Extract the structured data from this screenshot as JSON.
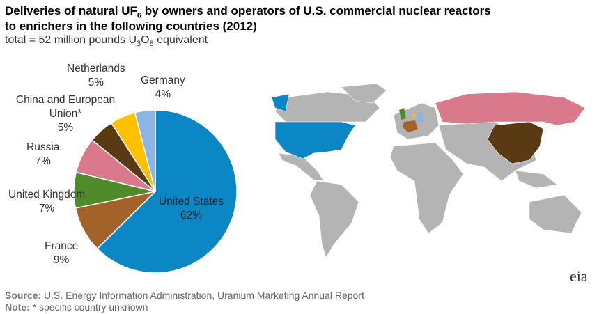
{
  "title_line1": "Deliveries of natural UF",
  "title_sub": "6",
  "title_line1b": " by owners and operators of U.S. commercial nuclear reactors",
  "title_line2": "to enrichers in the following countries (2012)",
  "subtitle_a": "total = 52 million pounds U",
  "subtitle_s1": "3",
  "subtitle_b": "O",
  "subtitle_s2": "8",
  "subtitle_c": " equivalent",
  "chart_data": {
    "type": "pie",
    "title": "Deliveries of natural UF6 by owners and operators of U.S. commercial nuclear reactors to enrichers in the following countries (2012)",
    "unit": "percent",
    "slices": [
      {
        "name": "United States",
        "value": 62,
        "label": "62%",
        "color": "#0b87c5"
      },
      {
        "name": "France",
        "value": 9,
        "label": "9%",
        "color": "#a3622a"
      },
      {
        "name": "United Kingdom",
        "value": 7,
        "label": "7%",
        "color": "#4f8a2b"
      },
      {
        "name": "Russia",
        "value": 7,
        "label": "7%",
        "color": "#d9798b"
      },
      {
        "name": "China and European Union*",
        "value": 5,
        "label": "5%",
        "color": "#5a3a12"
      },
      {
        "name": "Netherlands",
        "value": 5,
        "label": "5%",
        "color": "#ffc000"
      },
      {
        "name": "Germany",
        "value": 4,
        "label": "4%",
        "color": "#8db4e2"
      }
    ]
  },
  "source_label": "Source:",
  "source_text": " U.S. Energy Information Administration, Uranium Marketing Annual Report",
  "note_label": "Note:",
  "note_text": " * specific country unknown",
  "logo": "eia"
}
